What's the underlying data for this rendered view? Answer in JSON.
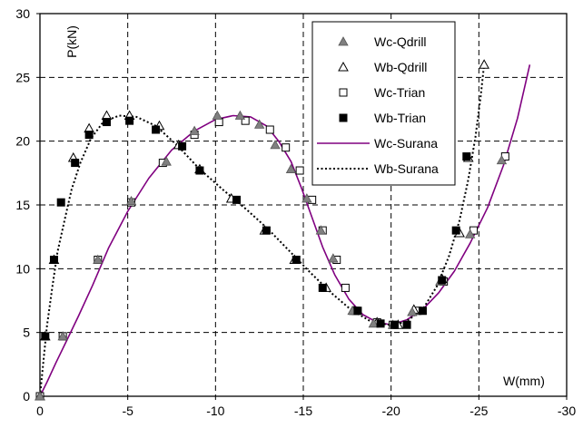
{
  "chart_data": {
    "type": "scatter",
    "title": "",
    "xlabel": "W(mm)",
    "ylabel": "P(kN)",
    "xlim": [
      0,
      -30
    ],
    "ylim": [
      0,
      30
    ],
    "x_ticks": [
      "0",
      "-5",
      "-10",
      "-15",
      "-20",
      "-25",
      "-30"
    ],
    "y_ticks": [
      "0",
      "5",
      "10",
      "15",
      "20",
      "25",
      "30"
    ],
    "grid": true,
    "legend_position": "top-right",
    "colors": {
      "wc_surana": "#800080",
      "black": "#000000",
      "grey_marker": "#808080"
    },
    "series": [
      {
        "name": "Wc-Qdrill",
        "marker": "triangle-filled",
        "points": [
          [
            0,
            0
          ],
          [
            -1.3,
            4.7
          ],
          [
            -3.3,
            10.7
          ],
          [
            -5.2,
            15.3
          ],
          [
            -7.2,
            18.4
          ],
          [
            -8.8,
            20.8
          ],
          [
            -10.1,
            22
          ],
          [
            -11.4,
            22
          ],
          [
            -12.5,
            21.3
          ],
          [
            -13.4,
            19.7
          ],
          [
            -14.3,
            17.8
          ],
          [
            -15.2,
            15.5
          ],
          [
            -16,
            13
          ],
          [
            -16.7,
            10.8
          ],
          [
            -17.8,
            6.7
          ],
          [
            -19,
            5.7
          ],
          [
            -20.1,
            5.6
          ],
          [
            -21.2,
            6.6
          ],
          [
            -22.8,
            9
          ],
          [
            -24.5,
            12.7
          ],
          [
            -26.3,
            18.5
          ]
        ]
      },
      {
        "name": "Wb-Qdrill",
        "marker": "triangle-open",
        "points": [
          [
            0,
            0
          ],
          [
            -0.3,
            4.7
          ],
          [
            -0.8,
            10.7
          ],
          [
            -1.9,
            18.7
          ],
          [
            -2.8,
            21
          ],
          [
            -3.8,
            22
          ],
          [
            -5.1,
            22
          ],
          [
            -6.8,
            21.2
          ],
          [
            -7.9,
            19.7
          ],
          [
            -9.1,
            17.8
          ],
          [
            -10.9,
            15.5
          ],
          [
            -12.8,
            13
          ],
          [
            -14.5,
            10.7
          ],
          [
            -16.3,
            8.5
          ],
          [
            -17.9,
            6.7
          ],
          [
            -19.2,
            5.8
          ],
          [
            -20.4,
            5.6
          ],
          [
            -21.3,
            6.8
          ],
          [
            -22.9,
            9.2
          ],
          [
            -23.9,
            12.8
          ],
          [
            -24.4,
            18.7
          ],
          [
            -25.3,
            26
          ]
        ]
      },
      {
        "name": "Wc-Trian",
        "marker": "square-open",
        "points": [
          [
            0,
            0
          ],
          [
            -1.3,
            4.7
          ],
          [
            -3.3,
            10.7
          ],
          [
            -5.2,
            15.2
          ],
          [
            -7,
            18.3
          ],
          [
            -8.8,
            20.5
          ],
          [
            -10.2,
            21.5
          ],
          [
            -11.7,
            21.6
          ],
          [
            -13.1,
            20.9
          ],
          [
            -14,
            19.5
          ],
          [
            -14.8,
            17.7
          ],
          [
            -15.5,
            15.4
          ],
          [
            -16.1,
            13
          ],
          [
            -16.9,
            10.7
          ],
          [
            -17.4,
            8.5
          ],
          [
            -18,
            6.7
          ],
          [
            -19.2,
            5.8
          ],
          [
            -20.1,
            5.6
          ],
          [
            -21.5,
            6.7
          ],
          [
            -23,
            9
          ],
          [
            -24.7,
            13
          ],
          [
            -26.5,
            18.8
          ]
        ]
      },
      {
        "name": "Wb-Trian",
        "marker": "square-filled",
        "points": [
          [
            -0.3,
            4.7
          ],
          [
            -0.8,
            10.7
          ],
          [
            -1.2,
            15.2
          ],
          [
            -2,
            18.3
          ],
          [
            -2.8,
            20.5
          ],
          [
            -3.8,
            21.5
          ],
          [
            -5.1,
            21.6
          ],
          [
            -6.6,
            20.9
          ],
          [
            -8.1,
            19.6
          ],
          [
            -9.1,
            17.7
          ],
          [
            -11.2,
            15.4
          ],
          [
            -12.9,
            13
          ],
          [
            -14.6,
            10.7
          ],
          [
            -16.1,
            8.5
          ],
          [
            -18.1,
            6.7
          ],
          [
            -19.4,
            5.7
          ],
          [
            -20.2,
            5.6
          ],
          [
            -20.9,
            5.6
          ],
          [
            -21.8,
            6.7
          ],
          [
            -22.9,
            9.1
          ],
          [
            -23.7,
            13
          ],
          [
            -24.3,
            18.8
          ]
        ]
      },
      {
        "name": "Wc-Surana",
        "line": "solid",
        "points": [
          [
            0,
            0
          ],
          [
            -0.4,
            1.1
          ],
          [
            -0.9,
            2.6
          ],
          [
            -1.5,
            4.3
          ],
          [
            -2.2,
            6.3
          ],
          [
            -3,
            8.7
          ],
          [
            -3.9,
            11.6
          ],
          [
            -5,
            14.5
          ],
          [
            -6.2,
            17.1
          ],
          [
            -7.5,
            19.3
          ],
          [
            -8.8,
            20.8
          ],
          [
            -10,
            21.7
          ],
          [
            -11,
            22
          ],
          [
            -12,
            21.9
          ],
          [
            -12.9,
            21.2
          ],
          [
            -13.6,
            20
          ],
          [
            -14.3,
            18.4
          ],
          [
            -14.9,
            16.3
          ],
          [
            -15.5,
            14
          ],
          [
            -16.1,
            11.7
          ],
          [
            -16.8,
            9.5
          ],
          [
            -17.6,
            7.6
          ],
          [
            -18.4,
            6.4
          ],
          [
            -19.2,
            5.8
          ],
          [
            -20,
            5.6
          ],
          [
            -20.9,
            6
          ],
          [
            -21.8,
            6.8
          ],
          [
            -22.7,
            8.1
          ],
          [
            -23.6,
            9.8
          ],
          [
            -24.5,
            12
          ],
          [
            -25.5,
            14.8
          ],
          [
            -26.4,
            18.1
          ],
          [
            -27.2,
            21.8
          ],
          [
            -27.9,
            26
          ]
        ]
      },
      {
        "name": "Wb-Surana",
        "line": "dotted",
        "points": [
          [
            0,
            0
          ],
          [
            -0.2,
            2.8
          ],
          [
            -0.4,
            5.5
          ],
          [
            -0.7,
            8.5
          ],
          [
            -1,
            11.3
          ],
          [
            -1.4,
            13.8
          ],
          [
            -1.8,
            16.2
          ],
          [
            -2.3,
            18.3
          ],
          [
            -2.9,
            20.2
          ],
          [
            -3.6,
            21.5
          ],
          [
            -4.5,
            22
          ],
          [
            -5.5,
            21.9
          ],
          [
            -6.6,
            21.2
          ],
          [
            -7.8,
            19.7
          ],
          [
            -9.1,
            17.8
          ],
          [
            -10.5,
            16.1
          ],
          [
            -11.8,
            14.6
          ],
          [
            -13,
            13.1
          ],
          [
            -14.2,
            11.4
          ],
          [
            -15.4,
            9.7
          ],
          [
            -16.6,
            8.1
          ],
          [
            -17.7,
            6.8
          ],
          [
            -18.8,
            5.9
          ],
          [
            -19.8,
            5.6
          ],
          [
            -20.8,
            5.8
          ],
          [
            -21.8,
            6.8
          ],
          [
            -22.6,
            8.6
          ],
          [
            -23.3,
            11
          ],
          [
            -23.9,
            13.8
          ],
          [
            -24.4,
            17
          ],
          [
            -24.8,
            20.3
          ],
          [
            -25.1,
            23.5
          ],
          [
            -25.3,
            26
          ]
        ]
      }
    ]
  }
}
